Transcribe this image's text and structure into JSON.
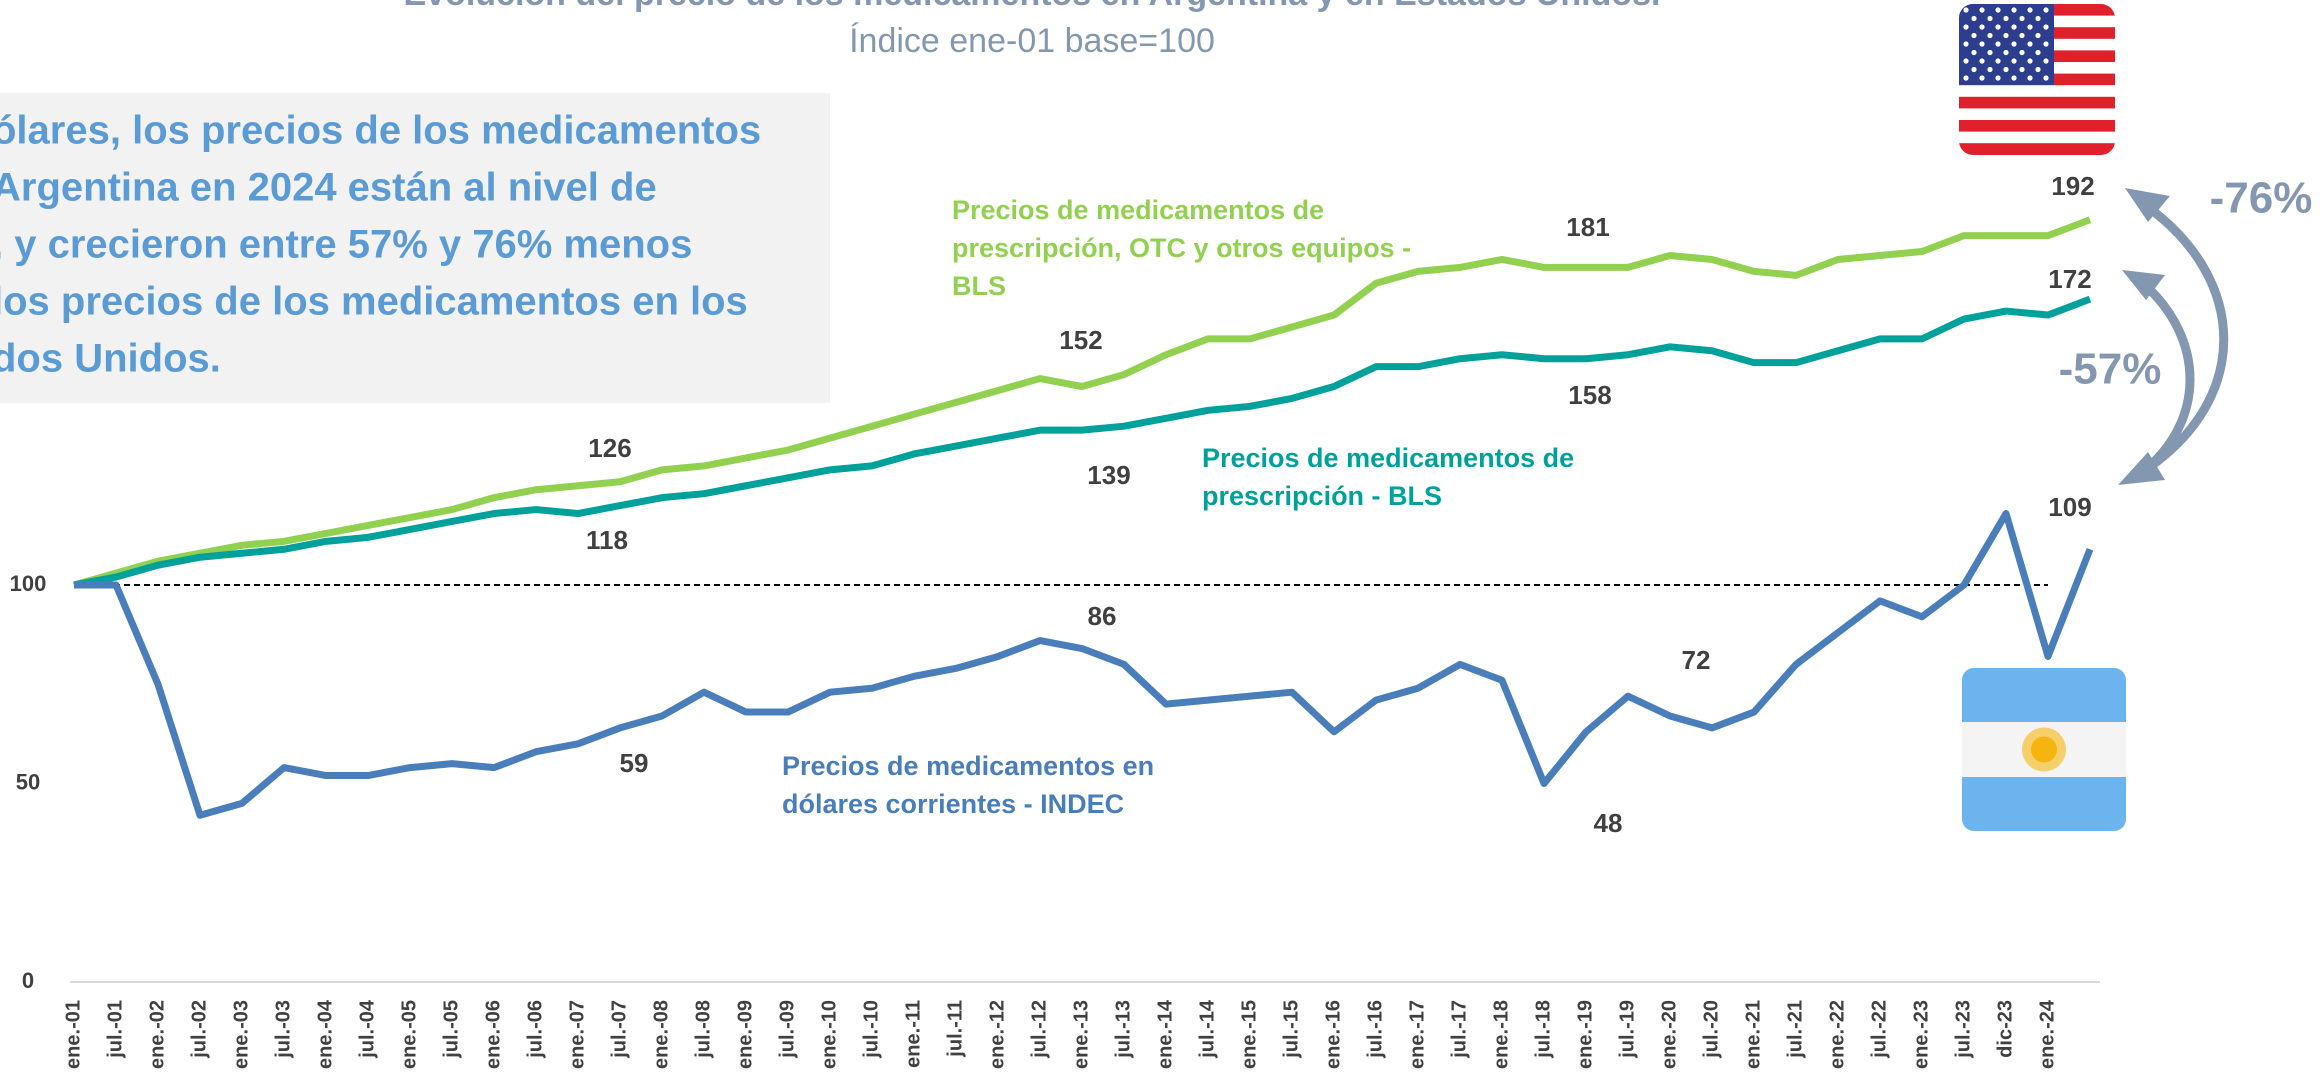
{
  "chart_data": {
    "type": "line",
    "title": "Evolución del precio de los medicamentos en Argentina y en Estados Unidos.",
    "subtitle": "Índice ene-01 base=100",
    "textbox": [
      "ólares, los precios de los medicamentos",
      " Argentina en 2024 están al nivel de",
      ", y crecieron entre 57% y 76% menos",
      "los precios de los medicamentos en los",
      "dos Unidos."
    ],
    "categories": [
      "ene.-01",
      "jul.-01",
      "ene.-02",
      "jul.-02",
      "ene.-03",
      "jul.-03",
      "ene.-04",
      "jul.-04",
      "ene.-05",
      "jul.-05",
      "ene.-06",
      "jul.-06",
      "ene.-07",
      "jul.-07",
      "ene.-08",
      "jul.-08",
      "ene.-09",
      "jul.-09",
      "ene.-10",
      "jul.-10",
      "ene.-11",
      "jul.-11",
      "ene.-12",
      "jul.-12",
      "ene.-13",
      "jul.-13",
      "ene.-14",
      "jul.-14",
      "ene.-15",
      "jul.-15",
      "ene.-16",
      "jul.-16",
      "ene.-17",
      "jul.-17",
      "ene.-18",
      "jul.-18",
      "ene.-19",
      "jul.-19",
      "ene.-20",
      "jul.-20",
      "ene.-21",
      "jul.-21",
      "ene.-22",
      "jul.-22",
      "ene.-23",
      "jul.-23",
      "dic-23",
      "ene.-24",
      null
    ],
    "series": [
      {
        "name": "Precios de medicamentos de prescripción, OTC y otros equipos - BLS",
        "name_lines": [
          "Precios de medicamentos de",
          "prescripción, OTC y otros equipos -",
          "BLS"
        ],
        "color": "#92d050",
        "values": [
          100,
          103,
          106,
          108,
          110,
          111,
          113,
          115,
          117,
          119,
          122,
          124,
          125,
          126,
          129,
          130,
          132,
          134,
          137,
          140,
          143,
          146,
          149,
          152,
          150,
          153,
          158,
          162,
          162,
          165,
          168,
          176,
          179,
          180,
          182,
          180,
          180,
          180,
          183,
          182,
          179,
          178,
          182,
          183,
          184,
          188,
          188,
          188,
          192
        ]
      },
      {
        "name": "Precios de medicamentos de prescripción - BLS",
        "name_lines": [
          "Precios de medicamentos de",
          "prescripción - BLS"
        ],
        "color": "#00a19a",
        "values": [
          100,
          102,
          105,
          107,
          108,
          109,
          111,
          112,
          114,
          116,
          118,
          119,
          118,
          120,
          122,
          123,
          125,
          127,
          129,
          130,
          133,
          135,
          137,
          139,
          139,
          140,
          142,
          144,
          145,
          147,
          150,
          155,
          155,
          157,
          158,
          157,
          157,
          158,
          160,
          159,
          156,
          156,
          159,
          162,
          162,
          167,
          169,
          168,
          172
        ]
      },
      {
        "name": "Precios de medicamentos en dólares corrientes - INDEC",
        "name_lines": [
          "Precios de medicamentos en",
          "dólares corrientes - INDEC"
        ],
        "color": "#4a7ebb",
        "values": [
          100,
          100,
          75,
          42,
          45,
          54,
          52,
          52,
          54,
          55,
          54,
          58,
          60,
          64,
          67,
          73,
          68,
          68,
          73,
          74,
          77,
          79,
          82,
          86,
          84,
          80,
          70,
          71,
          72,
          73,
          63,
          71,
          74,
          80,
          76,
          50,
          63,
          72,
          67,
          64,
          68,
          80,
          88,
          96,
          92,
          100,
          118,
          82,
          109
        ]
      }
    ],
    "reference_line": 100,
    "ylim": [
      0,
      240
    ],
    "yticks": [
      0,
      50,
      100
    ],
    "annotations": [
      "126",
      "118",
      "152",
      "139",
      "181",
      "158",
      "86",
      "59",
      "72",
      "48",
      "192",
      "172",
      "109",
      "-76%",
      "-57%"
    ]
  }
}
